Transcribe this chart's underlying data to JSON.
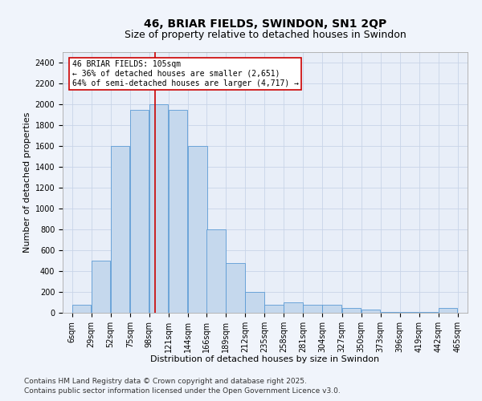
{
  "title1": "46, BRIAR FIELDS, SWINDON, SN1 2QP",
  "title2": "Size of property relative to detached houses in Swindon",
  "xlabel": "Distribution of detached houses by size in Swindon",
  "ylabel": "Number of detached properties",
  "bin_labels": [
    "6sqm",
    "29sqm",
    "52sqm",
    "75sqm",
    "98sqm",
    "121sqm",
    "144sqm",
    "166sqm",
    "189sqm",
    "212sqm",
    "235sqm",
    "258sqm",
    "281sqm",
    "304sqm",
    "327sqm",
    "350sqm",
    "373sqm",
    "396sqm",
    "419sqm",
    "442sqm",
    "465sqm"
  ],
  "bin_edges": [
    6,
    29,
    52,
    75,
    98,
    121,
    144,
    166,
    189,
    212,
    235,
    258,
    281,
    304,
    327,
    350,
    373,
    396,
    419,
    442,
    465
  ],
  "bar_heights": [
    80,
    500,
    1600,
    1950,
    2000,
    1950,
    1600,
    800,
    475,
    200,
    75,
    100,
    75,
    75,
    50,
    30,
    10,
    5,
    5,
    50,
    0
  ],
  "bar_color": "#c5d8ed",
  "bar_edge_color": "#5b9bd5",
  "vline_x": 105,
  "vline_color": "#cc0000",
  "annotation_text": "46 BRIAR FIELDS: 105sqm\n← 36% of detached houses are smaller (2,651)\n64% of semi-detached houses are larger (4,717) →",
  "annotation_box_color": "#ffffff",
  "annotation_box_edgecolor": "#cc0000",
  "ylim": [
    0,
    2500
  ],
  "yticks": [
    0,
    200,
    400,
    600,
    800,
    1000,
    1200,
    1400,
    1600,
    1800,
    2000,
    2200,
    2400
  ],
  "grid_color": "#c8d4e8",
  "bg_color": "#e8eef8",
  "fig_bg_color": "#f0f4fb",
  "footnote1": "Contains HM Land Registry data © Crown copyright and database right 2025.",
  "footnote2": "Contains public sector information licensed under the Open Government Licence v3.0.",
  "title1_fontsize": 10,
  "title2_fontsize": 9,
  "tick_fontsize": 7,
  "xlabel_fontsize": 8,
  "ylabel_fontsize": 8,
  "footnote_fontsize": 6.5,
  "annot_fontsize": 7
}
